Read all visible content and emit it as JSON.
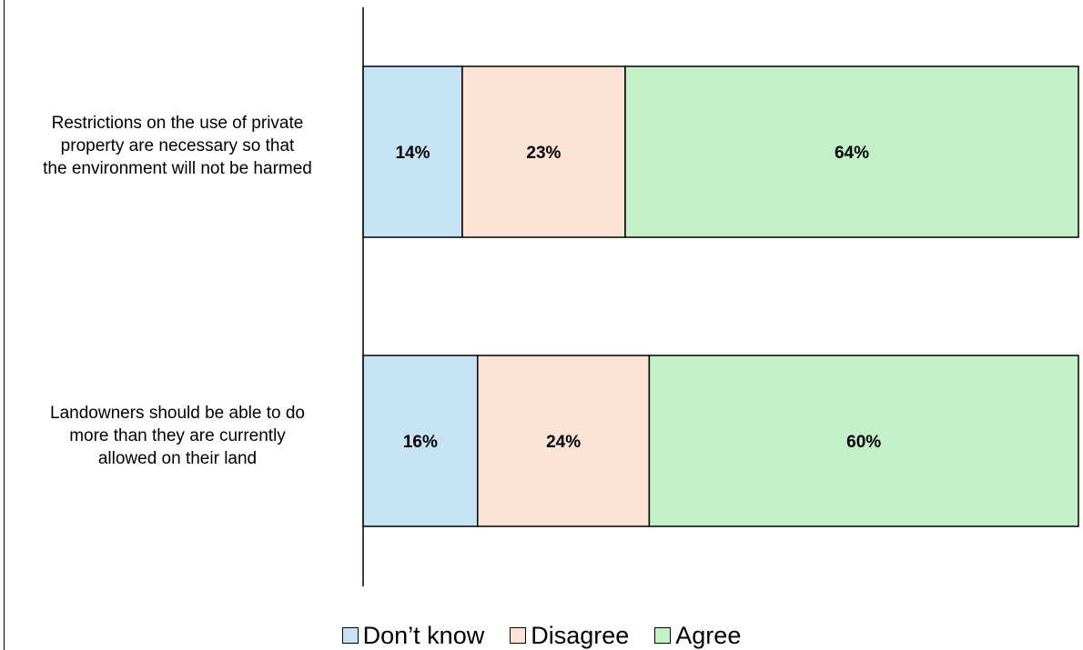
{
  "chart_data": {
    "type": "bar",
    "orientation": "horizontal",
    "stacked": true,
    "percent_stacked": true,
    "categories": [
      "Restrictions on the use of private property are necessary so that the environment will not be harmed",
      "Landowners should be able to do more than they are currently allowed on their land"
    ],
    "category_lines": [
      [
        "Restrictions on the use of private",
        "property are necessary so that",
        "the environment will not be harmed"
      ],
      [
        "Landowners should be able to do",
        "more than they are currently",
        "allowed on their land"
      ]
    ],
    "series": [
      {
        "name": "Don’t know",
        "values": [
          14,
          16
        ],
        "labels": [
          "14%",
          "16%"
        ],
        "color": "#c5e3f4"
      },
      {
        "name": "Disagree",
        "values": [
          23,
          24
        ],
        "labels": [
          "23%",
          "24%"
        ],
        "color": "#fbe3d6"
      },
      {
        "name": "Agree",
        "values": [
          64,
          60
        ],
        "labels": [
          "64%",
          "60%"
        ],
        "color": "#c4f0c8"
      }
    ],
    "title": "",
    "xlabel": "",
    "ylabel": "",
    "legend_position": "bottom",
    "grid": false,
    "data_labels": true
  }
}
